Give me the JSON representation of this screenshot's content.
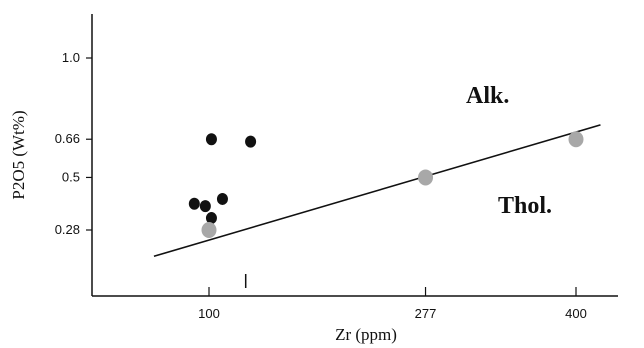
{
  "chart_data": {
    "type": "scatter",
    "xlabel": "Zr (ppm)",
    "ylabel": "P2O5 (Wt%)",
    "x_ticks": [
      {
        "value": 100,
        "label": "100"
      },
      {
        "value": 277,
        "label": "277"
      },
      {
        "value": 400,
        "label": "400"
      }
    ],
    "x_minor_ticks": [
      130
    ],
    "y_ticks": [
      {
        "value": 1.0,
        "label": "1.0"
      },
      {
        "value": 0.66,
        "label": "0.66"
      },
      {
        "value": 0.5,
        "label": "0.5"
      },
      {
        "value": 0.28,
        "label": "0.28"
      }
    ],
    "xlim": [
      55,
      450
    ],
    "ylim": [
      0.0,
      1.2
    ],
    "grid": false,
    "series": [
      {
        "color": "#111111",
        "points": [
          {
            "x": 88,
            "y": 0.39
          },
          {
            "x": 97,
            "y": 0.38
          },
          {
            "x": 102,
            "y": 0.33
          },
          {
            "x": 102,
            "y": 0.66
          },
          {
            "x": 111,
            "y": 0.41
          },
          {
            "x": 134,
            "y": 0.65
          }
        ]
      },
      {
        "color": "#a8a8a8",
        "points": [
          {
            "x": 100,
            "y": 0.28
          },
          {
            "x": 277,
            "y": 0.5
          },
          {
            "x": 400,
            "y": 0.66
          }
        ]
      }
    ],
    "divider_line": {
      "color": "#111111",
      "points": [
        {
          "x": 55,
          "y": 0.17
        },
        {
          "x": 420,
          "y": 0.72
        }
      ]
    },
    "annotations": [
      "Alk.",
      "Thol."
    ]
  }
}
